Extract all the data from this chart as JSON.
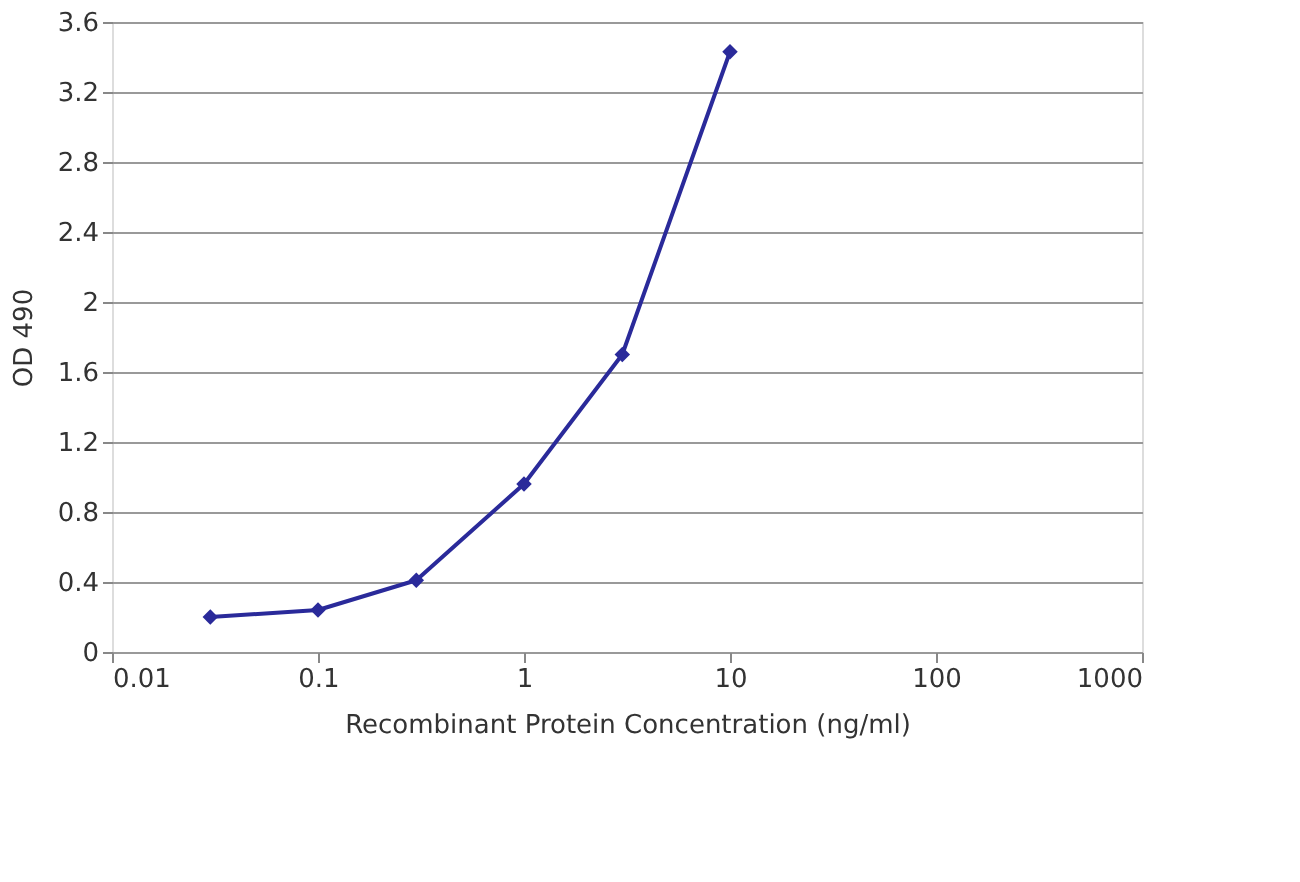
{
  "chart_data": {
    "type": "line",
    "xlabel": "Recombinant Protein Concentration (ng/ml)",
    "ylabel": "OD 490",
    "x": [
      0.03,
      0.1,
      0.3,
      1,
      3,
      10
    ],
    "series": [
      {
        "color": "#2a2a9a",
        "values": [
          0.2,
          0.24,
          0.41,
          0.96,
          1.7,
          3.43
        ]
      }
    ],
    "log": "x",
    "xlim": [
      0.01,
      1000
    ],
    "xticks": [
      0.01,
      0.1,
      1,
      10,
      100,
      1000
    ],
    "ylim": [
      0,
      3.6
    ],
    "yticks": [
      0,
      0.4,
      0.8,
      1.2,
      1.6,
      2,
      2.4,
      2.8,
      3.2,
      3.6
    ],
    "grid": "y",
    "marker": "diamond",
    "line_style": "solid"
  }
}
